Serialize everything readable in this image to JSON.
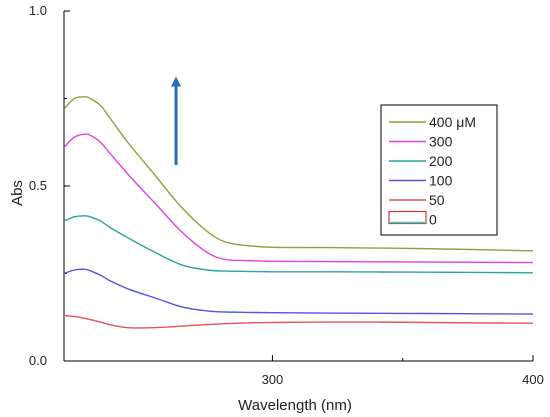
{
  "chart_data": {
    "type": "line",
    "title": "",
    "xlabel": "Wavelength (nm)",
    "ylabel": "Abs",
    "xlim": [
      220,
      400
    ],
    "ylim": [
      0.0,
      1.0
    ],
    "x_ticks": [
      {
        "value": 300,
        "label": "300"
      },
      {
        "value": 400,
        "label": "400"
      }
    ],
    "y_ticks": [
      {
        "value": 0.0,
        "label": "0.0"
      },
      {
        "value": 0.5,
        "label": "0.5"
      },
      {
        "value": 1.0,
        "label": "1.0"
      }
    ],
    "grid": false,
    "legend_position": "right",
    "arrow": {
      "x": 263,
      "y_from": 0.56,
      "y_to": 0.81,
      "color": "#1f6fbf"
    },
    "series": [
      {
        "name": "400 μM",
        "color": "#9a9a3a",
        "x": [
          220,
          224,
          228,
          230,
          234,
          238,
          245,
          255,
          265,
          275,
          282,
          290,
          300,
          320,
          350,
          380,
          400
        ],
        "y": [
          0.72,
          0.75,
          0.755,
          0.75,
          0.73,
          0.69,
          0.62,
          0.53,
          0.44,
          0.37,
          0.34,
          0.33,
          0.325,
          0.324,
          0.322,
          0.318,
          0.315
        ]
      },
      {
        "name": "300",
        "color": "#e040e0",
        "x": [
          220,
          224,
          228,
          230,
          234,
          238,
          245,
          255,
          265,
          275,
          282,
          290,
          300,
          320,
          350,
          380,
          400
        ],
        "y": [
          0.61,
          0.64,
          0.648,
          0.645,
          0.625,
          0.59,
          0.53,
          0.45,
          0.37,
          0.31,
          0.29,
          0.287,
          0.285,
          0.284,
          0.283,
          0.282,
          0.281
        ]
      },
      {
        "name": "200",
        "color": "#2aa39a",
        "x": [
          220,
          224,
          228,
          230,
          234,
          238,
          245,
          255,
          265,
          275,
          282,
          290,
          300,
          320,
          350,
          380,
          400
        ],
        "y": [
          0.4,
          0.412,
          0.415,
          0.412,
          0.4,
          0.38,
          0.35,
          0.31,
          0.275,
          0.26,
          0.257,
          0.256,
          0.255,
          0.255,
          0.254,
          0.253,
          0.252
        ]
      },
      {
        "name": "100",
        "color": "#5555dd",
        "x": [
          220,
          224,
          228,
          230,
          234,
          238,
          245,
          255,
          265,
          275,
          282,
          290,
          300,
          320,
          350,
          380,
          400
        ],
        "y": [
          0.25,
          0.26,
          0.262,
          0.258,
          0.245,
          0.228,
          0.205,
          0.18,
          0.155,
          0.143,
          0.14,
          0.139,
          0.138,
          0.137,
          0.136,
          0.135,
          0.134
        ]
      },
      {
        "name": "50",
        "color": "#e05555",
        "x": [
          220,
          226,
          232,
          238,
          245,
          252,
          260,
          270,
          280,
          290,
          300,
          320,
          340,
          360,
          380,
          400
        ],
        "y": [
          0.13,
          0.125,
          0.115,
          0.103,
          0.095,
          0.095,
          0.097,
          0.102,
          0.106,
          0.109,
          0.11,
          0.111,
          0.111,
          0.11,
          0.109,
          0.108
        ]
      },
      {
        "name": "0",
        "color": "#2ad4c4",
        "swatch_color": "#dd3333",
        "x": [],
        "y": []
      }
    ]
  }
}
